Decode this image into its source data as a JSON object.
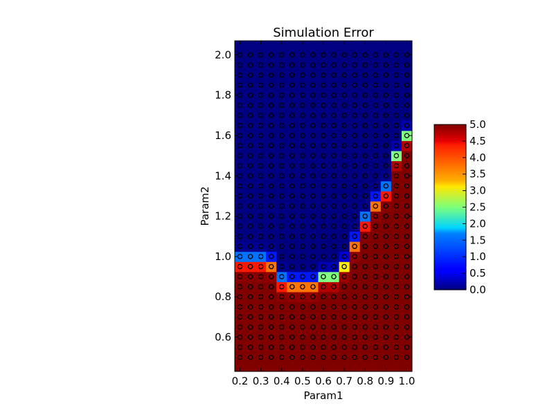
{
  "chart_data": {
    "type": "heatmap",
    "title": "Simulation Error",
    "xlabel": "Param1",
    "ylabel": "Param2",
    "xlim": [
      0.175,
      1.025
    ],
    "ylim": [
      0.43,
      2.07
    ],
    "x_ticks": [
      "0.2",
      "0.3",
      "0.4",
      "0.5",
      "0.6",
      "0.7",
      "0.8",
      "0.9",
      "1.0"
    ],
    "y_ticks": [
      "0.6",
      "0.8",
      "1.0",
      "1.2",
      "1.4",
      "1.6",
      "1.8",
      "2.0"
    ],
    "grid": false,
    "colormap": "jet",
    "colorbar": {
      "range": [
        0.0,
        5.0
      ],
      "ticks": [
        "0.0",
        "0.5",
        "1.0",
        "1.5",
        "2.0",
        "2.5",
        "3.0",
        "3.5",
        "4.0",
        "4.5",
        "5.0"
      ],
      "placement": "right"
    },
    "sample_points": {
      "x_start": 0.2,
      "x_end": 1.0,
      "x_count": 17,
      "y_start": 0.5,
      "y_end": 2.0,
      "y_count": 31,
      "marker": "open circle"
    },
    "error_field": {
      "x": [
        0.2,
        0.25,
        0.3,
        0.35,
        0.4,
        0.45,
        0.5,
        0.55,
        0.6,
        0.65,
        0.7,
        0.75,
        0.8,
        0.85,
        0.9,
        0.95,
        1.0
      ],
      "y": [
        0.5,
        0.55,
        0.6,
        0.65,
        0.7,
        0.75,
        0.8,
        0.85,
        0.9,
        0.95,
        1.0,
        1.05,
        1.1,
        1.15,
        1.2,
        1.25,
        1.3,
        1.35,
        1.4,
        1.45,
        1.5,
        1.55,
        1.6,
        1.65,
        1.7,
        1.75,
        1.8,
        1.85,
        1.9,
        1.95,
        2.0
      ],
      "boundary_curve": {
        "x": [
          0.2,
          0.25,
          0.3,
          0.35,
          0.4,
          0.45,
          0.5,
          0.55,
          0.6,
          0.65,
          0.7,
          0.75,
          0.8,
          0.85,
          0.9,
          0.95,
          1.0
        ],
        "y": [
          0.98,
          0.98,
          0.98,
          0.97,
          0.88,
          0.87,
          0.87,
          0.87,
          0.9,
          0.9,
          0.96,
          1.07,
          1.18,
          1.27,
          1.33,
          1.5,
          1.6
        ]
      },
      "value_low": 0.0,
      "value_high": 5.0
    }
  }
}
